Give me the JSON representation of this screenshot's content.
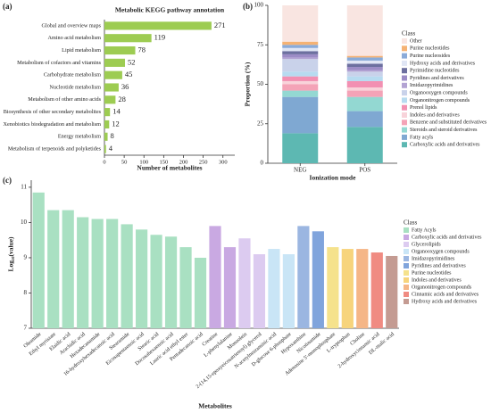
{
  "chart_data": [
    {
      "type": "barh",
      "label": "(a)",
      "title": "Metabolic KEGG pathway annotation",
      "x_label": "Number of metabolites",
      "categories": [
        "Global and overview maps",
        "Amino acid metabolism",
        "Lipid metabolism",
        "Metabolism of cofactors and vitamins",
        "Carbohydrate metabolism",
        "Nucleotide metabolism",
        "Metabolism of other amino acids",
        "Biosynthesis of other secondary metabolites",
        "Xenobiotics biodegradation and metabolism",
        "Energy metabolism",
        "Metabolism of terpenoids and polyketides"
      ],
      "values": [
        271,
        119,
        78,
        52,
        45,
        36,
        28,
        14,
        12,
        8,
        4
      ],
      "color": "#9dcc52",
      "xlim": [
        0,
        330
      ],
      "xticks": [
        0,
        50,
        100,
        150,
        200,
        250,
        300
      ]
    },
    {
      "type": "stacked",
      "label": "(b)",
      "x_label": "Ionization mode",
      "y_label": "Proportion (%)",
      "legend_title": "Class",
      "categories": [
        "NEG",
        "POS"
      ],
      "ylim": [
        0,
        100
      ],
      "yticks": [
        0,
        25,
        50,
        75,
        100
      ],
      "series": [
        {
          "name": "Carboxylic acids and derivatives",
          "color": "#5db8b2",
          "values": [
            19,
            23
          ]
        },
        {
          "name": "Fatty acyls",
          "color": "#7fa8d2",
          "values": [
            23,
            10
          ]
        },
        {
          "name": "Steroids and steroid derivatives",
          "color": "#93d8d2",
          "values": [
            4,
            9
          ]
        },
        {
          "name": "Benzene and substituted derivatives",
          "color": "#f4a3b7",
          "values": [
            4,
            4
          ]
        },
        {
          "name": "Indoles and derivatives",
          "color": "#f8d3da",
          "values": [
            2,
            2
          ]
        },
        {
          "name": "Prenol lipids",
          "color": "#f290b2",
          "values": [
            3,
            4
          ]
        },
        {
          "name": "Organonitrogen compounds",
          "color": "#b7dbf0",
          "values": [
            3,
            3
          ]
        },
        {
          "name": "Organooxygen compounds",
          "color": "#c9d2ea",
          "values": [
            8,
            3
          ]
        },
        {
          "name": "Imidazopyrimidines",
          "color": "#b3a3d3",
          "values": [
            1,
            1
          ]
        },
        {
          "name": "Pyridines and derivatives",
          "color": "#9c8cc6",
          "values": [
            2,
            2
          ]
        },
        {
          "name": "Pyrimidine nucleotides",
          "color": "#6c6f9f",
          "values": [
            2,
            2
          ]
        },
        {
          "name": "Hydroxy acids and derivatives",
          "color": "#e0e6f5",
          "values": [
            2,
            2
          ]
        },
        {
          "name": "Purine nucleosides",
          "color": "#8aabd9",
          "values": [
            2,
            2
          ]
        },
        {
          "name": "Purine nucleotides",
          "color": "#f5b273",
          "values": [
            2,
            1
          ]
        },
        {
          "name": "Other",
          "color": "#f9e5e1",
          "values": [
            23,
            32
          ]
        }
      ]
    },
    {
      "type": "bar",
      "label": "(c)",
      "x_label": "Metabolites",
      "y_label": "Log₁₀(value)",
      "legend_title": "Class",
      "categories": [
        "Oleamide",
        "Ethyl myristate",
        "Elaidic acid",
        "Arachidic acid",
        "Hexadecanamide",
        "16-hydroxyhexadecanoic acid",
        "Stearamide",
        "Eicosapentaenoic acid",
        "Stearic acid",
        "Docosahexaenoic acid",
        "Lauric acid ethyl ester",
        "Pentadecanoic acid",
        "Creatine",
        "L-phenylalanine",
        "Monoolein",
        "2-(14,15-epoxyeicosatrienoyl) glycerol",
        "N-acetylneuraminic acid",
        "D-glucose 6-phosphate",
        "Hypoxanthine",
        "Nicotinamide",
        "Adenosine 5'-monophosphate",
        "L-tryptophan",
        "Choline",
        "2-hydroxycinnamic acid",
        "DL-malic acid"
      ],
      "ylim": [
        7,
        11.2
      ],
      "yticks": [
        7,
        8,
        9,
        10,
        11
      ],
      "series": [
        {
          "name": "Fatty Acyls",
          "color": "#a9e0c2",
          "values": [
            10.85,
            10.35,
            10.35,
            10.15,
            10.1,
            10.1,
            9.95,
            9.8,
            9.65,
            9.6,
            9.3,
            9.0,
            null,
            null,
            null,
            null,
            null,
            null,
            null,
            null,
            null,
            null,
            null,
            null,
            null
          ]
        },
        {
          "name": "Carboxylic acids and derivatives",
          "color": "#c9a9e2",
          "values": [
            null,
            null,
            null,
            null,
            null,
            null,
            null,
            null,
            null,
            null,
            null,
            null,
            9.9,
            9.3,
            null,
            null,
            null,
            null,
            null,
            null,
            null,
            null,
            null,
            null,
            null
          ]
        },
        {
          "name": "Glycerolipids",
          "color": "#dccbf0",
          "values": [
            null,
            null,
            null,
            null,
            null,
            null,
            null,
            null,
            null,
            null,
            null,
            null,
            null,
            null,
            9.55,
            9.1,
            null,
            null,
            null,
            null,
            null,
            null,
            null,
            null,
            null
          ]
        },
        {
          "name": "Organooxygen compounds",
          "color": "#c9e5f6",
          "values": [
            null,
            null,
            null,
            null,
            null,
            null,
            null,
            null,
            null,
            null,
            null,
            null,
            null,
            null,
            null,
            null,
            9.25,
            9.1,
            null,
            null,
            null,
            null,
            null,
            null,
            null
          ]
        },
        {
          "name": "Imidazopyrimidines",
          "color": "#9bb6e1",
          "values": [
            null,
            null,
            null,
            null,
            null,
            null,
            null,
            null,
            null,
            null,
            null,
            null,
            null,
            null,
            null,
            null,
            null,
            null,
            9.9,
            null,
            null,
            null,
            null,
            null,
            null
          ]
        },
        {
          "name": "Pyridines and derivatives",
          "color": "#80a4dc",
          "values": [
            null,
            null,
            null,
            null,
            null,
            null,
            null,
            null,
            null,
            null,
            null,
            null,
            null,
            null,
            null,
            null,
            null,
            null,
            null,
            9.75,
            null,
            null,
            null,
            null,
            null
          ]
        },
        {
          "name": "Purine nucleotides",
          "color": "#f5e28c",
          "values": [
            null,
            null,
            null,
            null,
            null,
            null,
            null,
            null,
            null,
            null,
            null,
            null,
            null,
            null,
            null,
            null,
            null,
            null,
            null,
            null,
            9.3,
            null,
            null,
            null,
            null
          ]
        },
        {
          "name": "Indoles and derivatives",
          "color": "#f7d47c",
          "values": [
            null,
            null,
            null,
            null,
            null,
            null,
            null,
            null,
            null,
            null,
            null,
            null,
            null,
            null,
            null,
            null,
            null,
            null,
            null,
            null,
            null,
            9.25,
            null,
            null,
            null
          ]
        },
        {
          "name": "Organonitrogen compounds",
          "color": "#f5b687",
          "values": [
            null,
            null,
            null,
            null,
            null,
            null,
            null,
            null,
            null,
            null,
            null,
            null,
            null,
            null,
            null,
            null,
            null,
            null,
            null,
            null,
            null,
            null,
            9.25,
            null,
            null
          ]
        },
        {
          "name": "Cinnamic acids and derivatives",
          "color": "#f08b82",
          "values": [
            null,
            null,
            null,
            null,
            null,
            null,
            null,
            null,
            null,
            null,
            null,
            null,
            null,
            null,
            null,
            null,
            null,
            null,
            null,
            null,
            null,
            null,
            null,
            9.15,
            null
          ]
        },
        {
          "name": "Hydroxy acids and derivatives",
          "color": "#c49b92",
          "values": [
            null,
            null,
            null,
            null,
            null,
            null,
            null,
            null,
            null,
            null,
            null,
            null,
            null,
            null,
            null,
            null,
            null,
            null,
            null,
            null,
            null,
            null,
            null,
            null,
            9.05
          ]
        }
      ]
    }
  ]
}
